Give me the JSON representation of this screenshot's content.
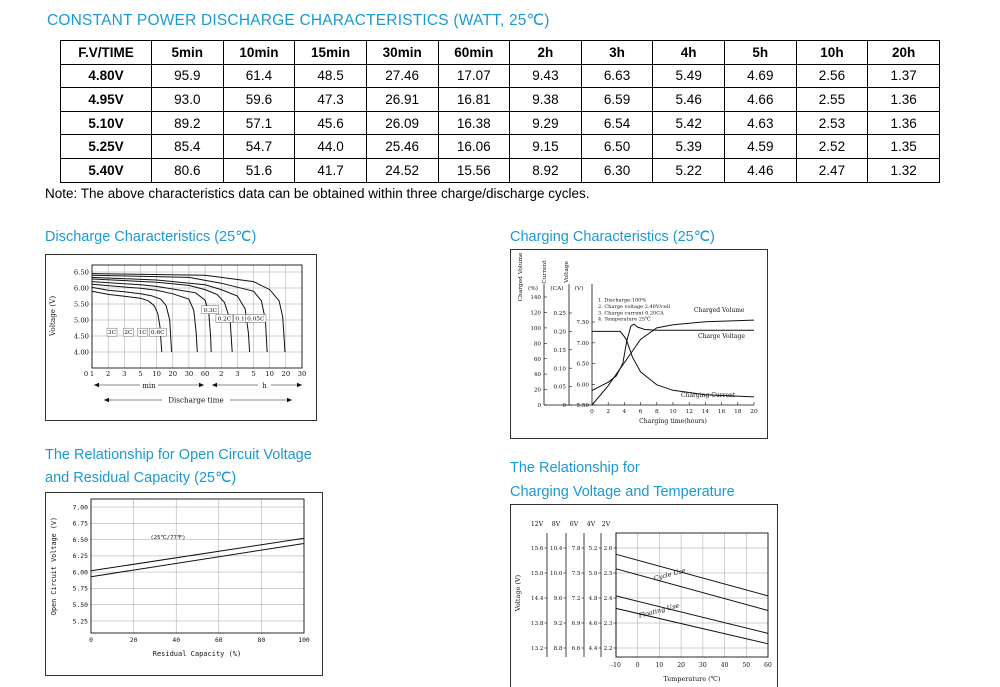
{
  "page": {
    "title": "CONSTANT POWER DISCHARGE CHARACTERISTICS (WATT, 25℃)",
    "note": "Note: The above characteristics data can be obtained within three charge/discharge cycles.",
    "accent_color": "#1a9ad2"
  },
  "table": {
    "headers": [
      "F.V/TIME",
      "5min",
      "10min",
      "15min",
      "30min",
      "60min",
      "2h",
      "3h",
      "4h",
      "5h",
      "10h",
      "20h"
    ],
    "rows": [
      [
        "4.80V",
        "95.9",
        "61.4",
        "48.5",
        "27.46",
        "17.07",
        "9.43",
        "6.63",
        "5.49",
        "4.69",
        "2.56",
        "1.37"
      ],
      [
        "4.95V",
        "93.0",
        "59.6",
        "47.3",
        "26.91",
        "16.81",
        "9.38",
        "6.59",
        "5.46",
        "4.66",
        "2.55",
        "1.36"
      ],
      [
        "5.10V",
        "89.2",
        "57.1",
        "45.6",
        "26.09",
        "16.38",
        "9.29",
        "6.54",
        "5.42",
        "4.63",
        "2.53",
        "1.36"
      ],
      [
        "5.25V",
        "85.4",
        "54.7",
        "44.0",
        "25.46",
        "16.06",
        "9.15",
        "6.50",
        "5.39",
        "4.59",
        "2.52",
        "1.35"
      ],
      [
        "5.40V",
        "80.6",
        "51.6",
        "41.7",
        "24.52",
        "15.56",
        "8.92",
        "6.30",
        "5.22",
        "4.46",
        "2.47",
        "1.32"
      ]
    ]
  },
  "sections": {
    "discharge": {
      "heading": "Discharge Characteristics (25℃)"
    },
    "charging": {
      "heading": "Charging Characteristics (25℃)"
    },
    "ocv": {
      "heading_line1": "The Relationship for Open Circuit Voltage",
      "heading_line2": "and Residual Capacity (25℃)"
    },
    "charge_temp": {
      "heading_line1": "The Relationship for",
      "heading_line2": "Charging Voltage and Temperature"
    }
  },
  "chart_data": {
    "discharge": {
      "type": "line",
      "title": "Discharge Characteristics (25℃)",
      "xlabel": "Discharge time",
      "ylabel": "Voltage (V)",
      "ylim": [
        4.0,
        6.5
      ],
      "yticks": [
        "6.50",
        "6.00",
        "5.50",
        "5.00",
        "4.50",
        "4.00"
      ],
      "origin_label": "0",
      "x_groups": [
        {
          "unit": "min",
          "ticks": [
            "1",
            "2",
            "3",
            "5",
            "10",
            "20",
            "30",
            "60"
          ]
        },
        {
          "unit": "h",
          "ticks": [
            "2",
            "3",
            "5",
            "10",
            "20",
            "30"
          ]
        }
      ],
      "series": [
        {
          "name": "3C",
          "points": [
            [
              1,
              5.9
            ],
            [
              2,
              5.8
            ],
            [
              3,
              5.74
            ],
            [
              5,
              5.68
            ],
            [
              7,
              5.6
            ],
            [
              9,
              5.45
            ],
            [
              10.5,
              5.2
            ],
            [
              11.5,
              4.8
            ],
            [
              12.5,
              4.0
            ]
          ],
          "label_at": [
            2.2,
            4.62
          ]
        },
        {
          "name": "2C",
          "points": [
            [
              1,
              6.02
            ],
            [
              2,
              5.93
            ],
            [
              3,
              5.88
            ],
            [
              5,
              5.82
            ],
            [
              8,
              5.76
            ],
            [
              12,
              5.65
            ],
            [
              15,
              5.45
            ],
            [
              17.5,
              5.0
            ],
            [
              19,
              4.0
            ]
          ],
          "label_at": [
            3.4,
            4.62
          ]
        },
        {
          "name": "1C",
          "points": [
            [
              1,
              6.12
            ],
            [
              3,
              6.03
            ],
            [
              5,
              5.99
            ],
            [
              10,
              5.93
            ],
            [
              20,
              5.82
            ],
            [
              30,
              5.65
            ],
            [
              37,
              5.3
            ],
            [
              41,
              4.6
            ],
            [
              43,
              4.0
            ]
          ],
          "label_at": [
            5.5,
            4.62
          ]
        },
        {
          "name": "0.6C",
          "points": [
            [
              1,
              6.2
            ],
            [
              5,
              6.1
            ],
            [
              10,
              6.05
            ],
            [
              20,
              5.97
            ],
            [
              40,
              5.85
            ],
            [
              60,
              5.62
            ],
            [
              70,
              5.25
            ],
            [
              76,
              4.5
            ],
            [
              78,
              4.0
            ]
          ],
          "label_at": [
            10.5,
            4.62
          ]
        },
        {
          "name": "0.3C",
          "points": [
            [
              1,
              6.28
            ],
            [
              10,
              6.18
            ],
            [
              30,
              6.08
            ],
            [
              60,
              5.95
            ],
            [
              100,
              5.8
            ],
            [
              130,
              5.55
            ],
            [
              150,
              5.0
            ],
            [
              158,
              4.0
            ]
          ],
          "label_at": [
            75,
            5.32
          ]
        },
        {
          "name": "0.2C",
          "points": [
            [
              1,
              6.33
            ],
            [
              10,
              6.25
            ],
            [
              60,
              6.1
            ],
            [
              120,
              5.95
            ],
            [
              180,
              5.75
            ],
            [
              230,
              5.35
            ],
            [
              255,
              4.6
            ],
            [
              265,
              4.0
            ]
          ],
          "label_at": [
            130,
            5.05
          ]
        },
        {
          "name": "0.1C",
          "points": [
            [
              1,
              6.4
            ],
            [
              30,
              6.33
            ],
            [
              120,
              6.15
            ],
            [
              300,
              5.9
            ],
            [
              420,
              5.6
            ],
            [
              500,
              5.0
            ],
            [
              530,
              4.2
            ],
            [
              540,
              4.0
            ]
          ],
          "label_at": [
            210,
            5.05
          ]
        },
        {
          "name": "0.05C",
          "points": [
            [
              1,
              6.45
            ],
            [
              60,
              6.4
            ],
            [
              300,
              6.2
            ],
            [
              600,
              5.95
            ],
            [
              900,
              5.6
            ],
            [
              1050,
              5.1
            ],
            [
              1130,
              4.3
            ],
            [
              1150,
              4.0
            ]
          ],
          "label_at": [
            330,
            5.05
          ]
        }
      ]
    },
    "charging": {
      "type": "line",
      "title": "Charging Characteristics (25℃)",
      "xlabel": "Charging time(hours)",
      "xticks": [
        0,
        2,
        4,
        6,
        8,
        10,
        12,
        14,
        16,
        18,
        20
      ],
      "axes": [
        {
          "title": "Charged Volume",
          "unit": "(%)",
          "ticks": [
            "140",
            "120",
            "100",
            "80",
            "60",
            "40",
            "20",
            "0"
          ]
        },
        {
          "title": "Current",
          "unit": "(CA)",
          "ticks": [
            "0.25",
            "0.20",
            "0.15",
            "0.10",
            "0.05",
            "0"
          ]
        },
        {
          "title": "Voltage",
          "unit": "(V)",
          "ticks": [
            "7.50",
            "7.00",
            "6.50",
            "6.00",
            "5.50"
          ]
        }
      ],
      "notes": [
        "1. Discharge:100%",
        "2. Charge voltage 2.40V/cell",
        "3. Charge current 0.20CA",
        "4. Temperature 25℃"
      ],
      "series": [
        {
          "name": "Charged Volume",
          "scale": "pct",
          "points": [
            [
              0,
              0
            ],
            [
              2,
              25
            ],
            [
              4,
              55
            ],
            [
              6,
              85
            ],
            [
              8,
              100
            ],
            [
              10,
              104
            ],
            [
              14,
              108
            ],
            [
              20,
              110
            ]
          ]
        },
        {
          "name": "Charge Voltage",
          "scale": "volt",
          "points": [
            [
              0,
              5.85
            ],
            [
              1,
              5.95
            ],
            [
              2,
              6.05
            ],
            [
              3,
              6.2
            ],
            [
              3.8,
              6.5
            ],
            [
              4.3,
              7.05
            ],
            [
              4.8,
              7.4
            ],
            [
              5.2,
              7.45
            ],
            [
              5.6,
              7.38
            ],
            [
              6.5,
              7.32
            ],
            [
              8,
              7.3
            ],
            [
              20,
              7.3
            ]
          ]
        },
        {
          "name": "Charging Current",
          "scale": "ca",
          "points": [
            [
              0,
              0.2
            ],
            [
              3.5,
              0.2
            ],
            [
              4.2,
              0.18
            ],
            [
              5,
              0.13
            ],
            [
              6,
              0.09
            ],
            [
              8,
              0.055
            ],
            [
              10,
              0.04
            ],
            [
              14,
              0.028
            ],
            [
              20,
              0.022
            ]
          ]
        }
      ]
    },
    "ocv": {
      "type": "line",
      "title": "The Relationship for Open Circuit Voltage and Residual Capacity (25℃)",
      "xlabel": "Residual Capacity (%)",
      "ylabel": "Open Circuit Voltage (V)",
      "annotation": "(25℃/77℉)",
      "xlim": [
        0,
        100
      ],
      "ylim": [
        5.25,
        7.0
      ],
      "yticks": [
        "7.00",
        "6.75",
        "6.50",
        "6.25",
        "6.00",
        "5.75",
        "5.50",
        "5.25"
      ],
      "xticks": [
        "0",
        "20",
        "40",
        "60",
        "80",
        "100"
      ],
      "lines": [
        [
          [
            0,
            6.02
          ],
          [
            100,
            6.52
          ]
        ],
        [
          [
            0,
            5.93
          ],
          [
            100,
            6.44
          ]
        ]
      ]
    },
    "charge_temp": {
      "type": "line",
      "title": "The Relationship for Charging Voltage and Temperature",
      "xlabel": "Temperature (℃)",
      "ylabel": "Voltage (V)",
      "xlim": [
        -10,
        60
      ],
      "scale_headers": [
        "12V",
        "8V",
        "6V",
        "4V",
        "2V"
      ],
      "scale_rows": [
        [
          "15.6",
          "10.4",
          "7.8",
          "5.2",
          "2.6"
        ],
        [
          "15.0",
          "10.0",
          "7.5",
          "5.0",
          "2.5"
        ],
        [
          "14.4",
          "9.6",
          "7.2",
          "4.8",
          "2.4"
        ],
        [
          "13.8",
          "9.2",
          "6.9",
          "4.6",
          "2.3"
        ],
        [
          "13.2",
          "8.8",
          "6.6",
          "4.4",
          "2.2"
        ]
      ],
      "xticks": [
        "-10",
        "0",
        "10",
        "20",
        "30",
        "40",
        "50",
        "60"
      ],
      "bands": [
        {
          "name": "Cycle Use",
          "upper": [
            [
              -10,
              15.45
            ],
            [
              60,
              14.45
            ]
          ],
          "lower": [
            [
              -10,
              15.1
            ],
            [
              60,
              14.1
            ]
          ],
          "label_at": [
            15,
            14.92
          ]
        },
        {
          "name": "Floating Use",
          "upper": [
            [
              -10,
              14.45
            ],
            [
              60,
              13.55
            ]
          ],
          "lower": [
            [
              -10,
              14.15
            ],
            [
              60,
              13.3
            ]
          ],
          "label_at": [
            10,
            14.05
          ]
        }
      ]
    }
  }
}
